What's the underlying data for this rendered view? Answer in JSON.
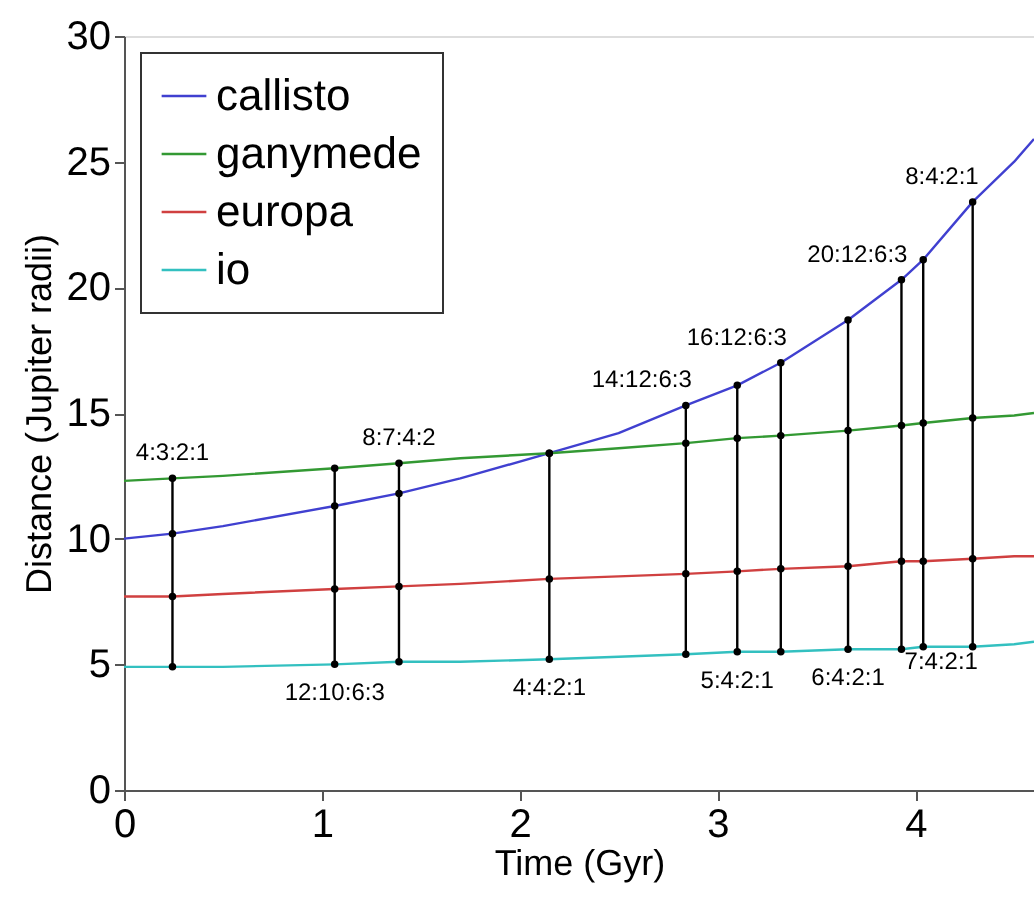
{
  "chart_data": {
    "type": "line",
    "xlabel": "Time (Gyr)",
    "ylabel": "Distance (Jupiter radii)",
    "xlim": [
      0,
      4.6
    ],
    "ylim": [
      0,
      30
    ],
    "xticks": [
      {
        "value": 0,
        "label": "0"
      },
      {
        "value": 1,
        "label": "1"
      },
      {
        "value": 2,
        "label": "2"
      },
      {
        "value": 3,
        "label": "3"
      },
      {
        "value": 4,
        "label": "4"
      }
    ],
    "line_style": "solid",
    "yticks": [
      0,
      5,
      10,
      15,
      20,
      25,
      30
    ],
    "grid": false,
    "legend": "top left",
    "marker": "none",
    "x": [
      0,
      0.245,
      0.5,
      1.065,
      1.39,
      1.7,
      2.15,
      2.5,
      2.84,
      3.1,
      3.32,
      3.66,
      3.93,
      4.04,
      4.29,
      4.5,
      4.6
    ],
    "series": [
      {
        "name": "callisto",
        "color": "#4040d0",
        "values": [
          10.0,
          10.2,
          10.5,
          11.3,
          11.8,
          12.4,
          13.4,
          14.2,
          15.3,
          16.1,
          17.0,
          18.7,
          20.3,
          21.1,
          23.4,
          25.0,
          25.9
        ]
      },
      {
        "name": "ganymede",
        "color": "#339933",
        "values": [
          12.3,
          12.4,
          12.5,
          12.8,
          13.0,
          13.2,
          13.4,
          13.6,
          13.8,
          14.0,
          14.1,
          14.3,
          14.5,
          14.6,
          14.8,
          14.9,
          15.0
        ]
      },
      {
        "name": "europa",
        "color": "#d04040",
        "values": [
          7.7,
          7.7,
          7.8,
          8.0,
          8.1,
          8.2,
          8.4,
          8.5,
          8.6,
          8.7,
          8.8,
          8.9,
          9.1,
          9.1,
          9.2,
          9.3,
          9.3
        ]
      },
      {
        "name": "io",
        "color": "#33c0c0",
        "values": [
          4.9,
          4.9,
          4.9,
          5.0,
          5.1,
          5.1,
          5.2,
          5.3,
          5.4,
          5.5,
          5.5,
          5.6,
          5.6,
          5.7,
          5.7,
          5.8,
          5.9
        ]
      },
      {
        "type": "line",
        "color": "#000000",
        "marker": "circle",
        "x": [
          0.245,
          0.245,
          0.245,
          0.245
        ],
        "values": [
          4.9,
          7.7,
          12.4,
          10.2
        ]
      },
      {
        "type": "line",
        "color": "#000000",
        "marker": "circle",
        "x": [
          1.065,
          1.065,
          1.065,
          1.065
        ],
        "values": [
          5.0,
          8.0,
          12.8,
          11.3
        ]
      },
      {
        "type": "line",
        "color": "#000000",
        "marker": "circle",
        "x": [
          1.39,
          1.39,
          1.39,
          1.39
        ],
        "values": [
          5.1,
          8.1,
          13.0,
          11.8
        ]
      },
      {
        "type": "line",
        "color": "#000000",
        "marker": "circle",
        "x": [
          2.15,
          2.15,
          2.15,
          2.15
        ],
        "values": [
          5.2,
          8.4,
          13.4,
          13.4
        ]
      },
      {
        "type": "line",
        "color": "#000000",
        "marker": "circle",
        "x": [
          2.84,
          2.84,
          2.84,
          2.84
        ],
        "values": [
          5.4,
          8.6,
          13.8,
          15.3
        ]
      },
      {
        "type": "line",
        "color": "#000000",
        "marker": "circle",
        "x": [
          3.1,
          3.1,
          3.1,
          3.1
        ],
        "values": [
          5.5,
          8.7,
          14.0,
          16.1
        ]
      },
      {
        "type": "line",
        "color": "#000000",
        "marker": "circle",
        "x": [
          3.32,
          3.32,
          3.32,
          3.32
        ],
        "values": [
          5.5,
          8.8,
          14.1,
          17.0
        ]
      },
      {
        "type": "line",
        "color": "#000000",
        "marker": "circle",
        "x": [
          3.66,
          3.66,
          3.66,
          3.66
        ],
        "values": [
          5.6,
          8.9,
          14.3,
          18.7
        ]
      },
      {
        "type": "line",
        "color": "#000000",
        "marker": "circle",
        "x": [
          3.93,
          3.93,
          3.93,
          3.93
        ],
        "values": [
          5.6,
          9.1,
          14.5,
          20.3
        ]
      },
      {
        "type": "line",
        "color": "#000000",
        "marker": "circle",
        "x": [
          4.04,
          4.04,
          4.04,
          4.04
        ],
        "values": [
          5.7,
          9.1,
          14.6,
          21.1
        ]
      },
      {
        "type": "line",
        "color": "#000000",
        "marker": "circle",
        "x": [
          4.29,
          4.29,
          4.29,
          4.29
        ],
        "values": [
          5.7,
          9.2,
          14.8,
          23.4
        ]
      }
    ],
    "annotations": [
      {
        "text": "4:3:2:1",
        "x": 0.245,
        "y": 12.4
      },
      {
        "text": "8:7:4:2",
        "x": 1.39,
        "y": 13.0
      },
      {
        "text": "14:12:6:3",
        "x": 2.84,
        "y": 15.3
      },
      {
        "text": "16:12:6:3",
        "x": 3.32,
        "y": 17.0
      },
      {
        "text": "20:12:6:3",
        "x": 3.93,
        "y": 20.3
      },
      {
        "text": "8:4:2:1",
        "x": 4.29,
        "y": 23.4
      },
      {
        "text": "12:10:6:3",
        "x": 1.065,
        "y": 5.0
      },
      {
        "text": "4:4:2:1",
        "x": 2.15,
        "y": 5.2
      },
      {
        "text": "5:4:2:1",
        "x": 3.1,
        "y": 5.5
      },
      {
        "text": "6:4:2:1",
        "x": 3.66,
        "y": 5.6
      },
      {
        "text": "7:4:2:1",
        "x": 4.04,
        "y": 5.7
      }
    ]
  }
}
